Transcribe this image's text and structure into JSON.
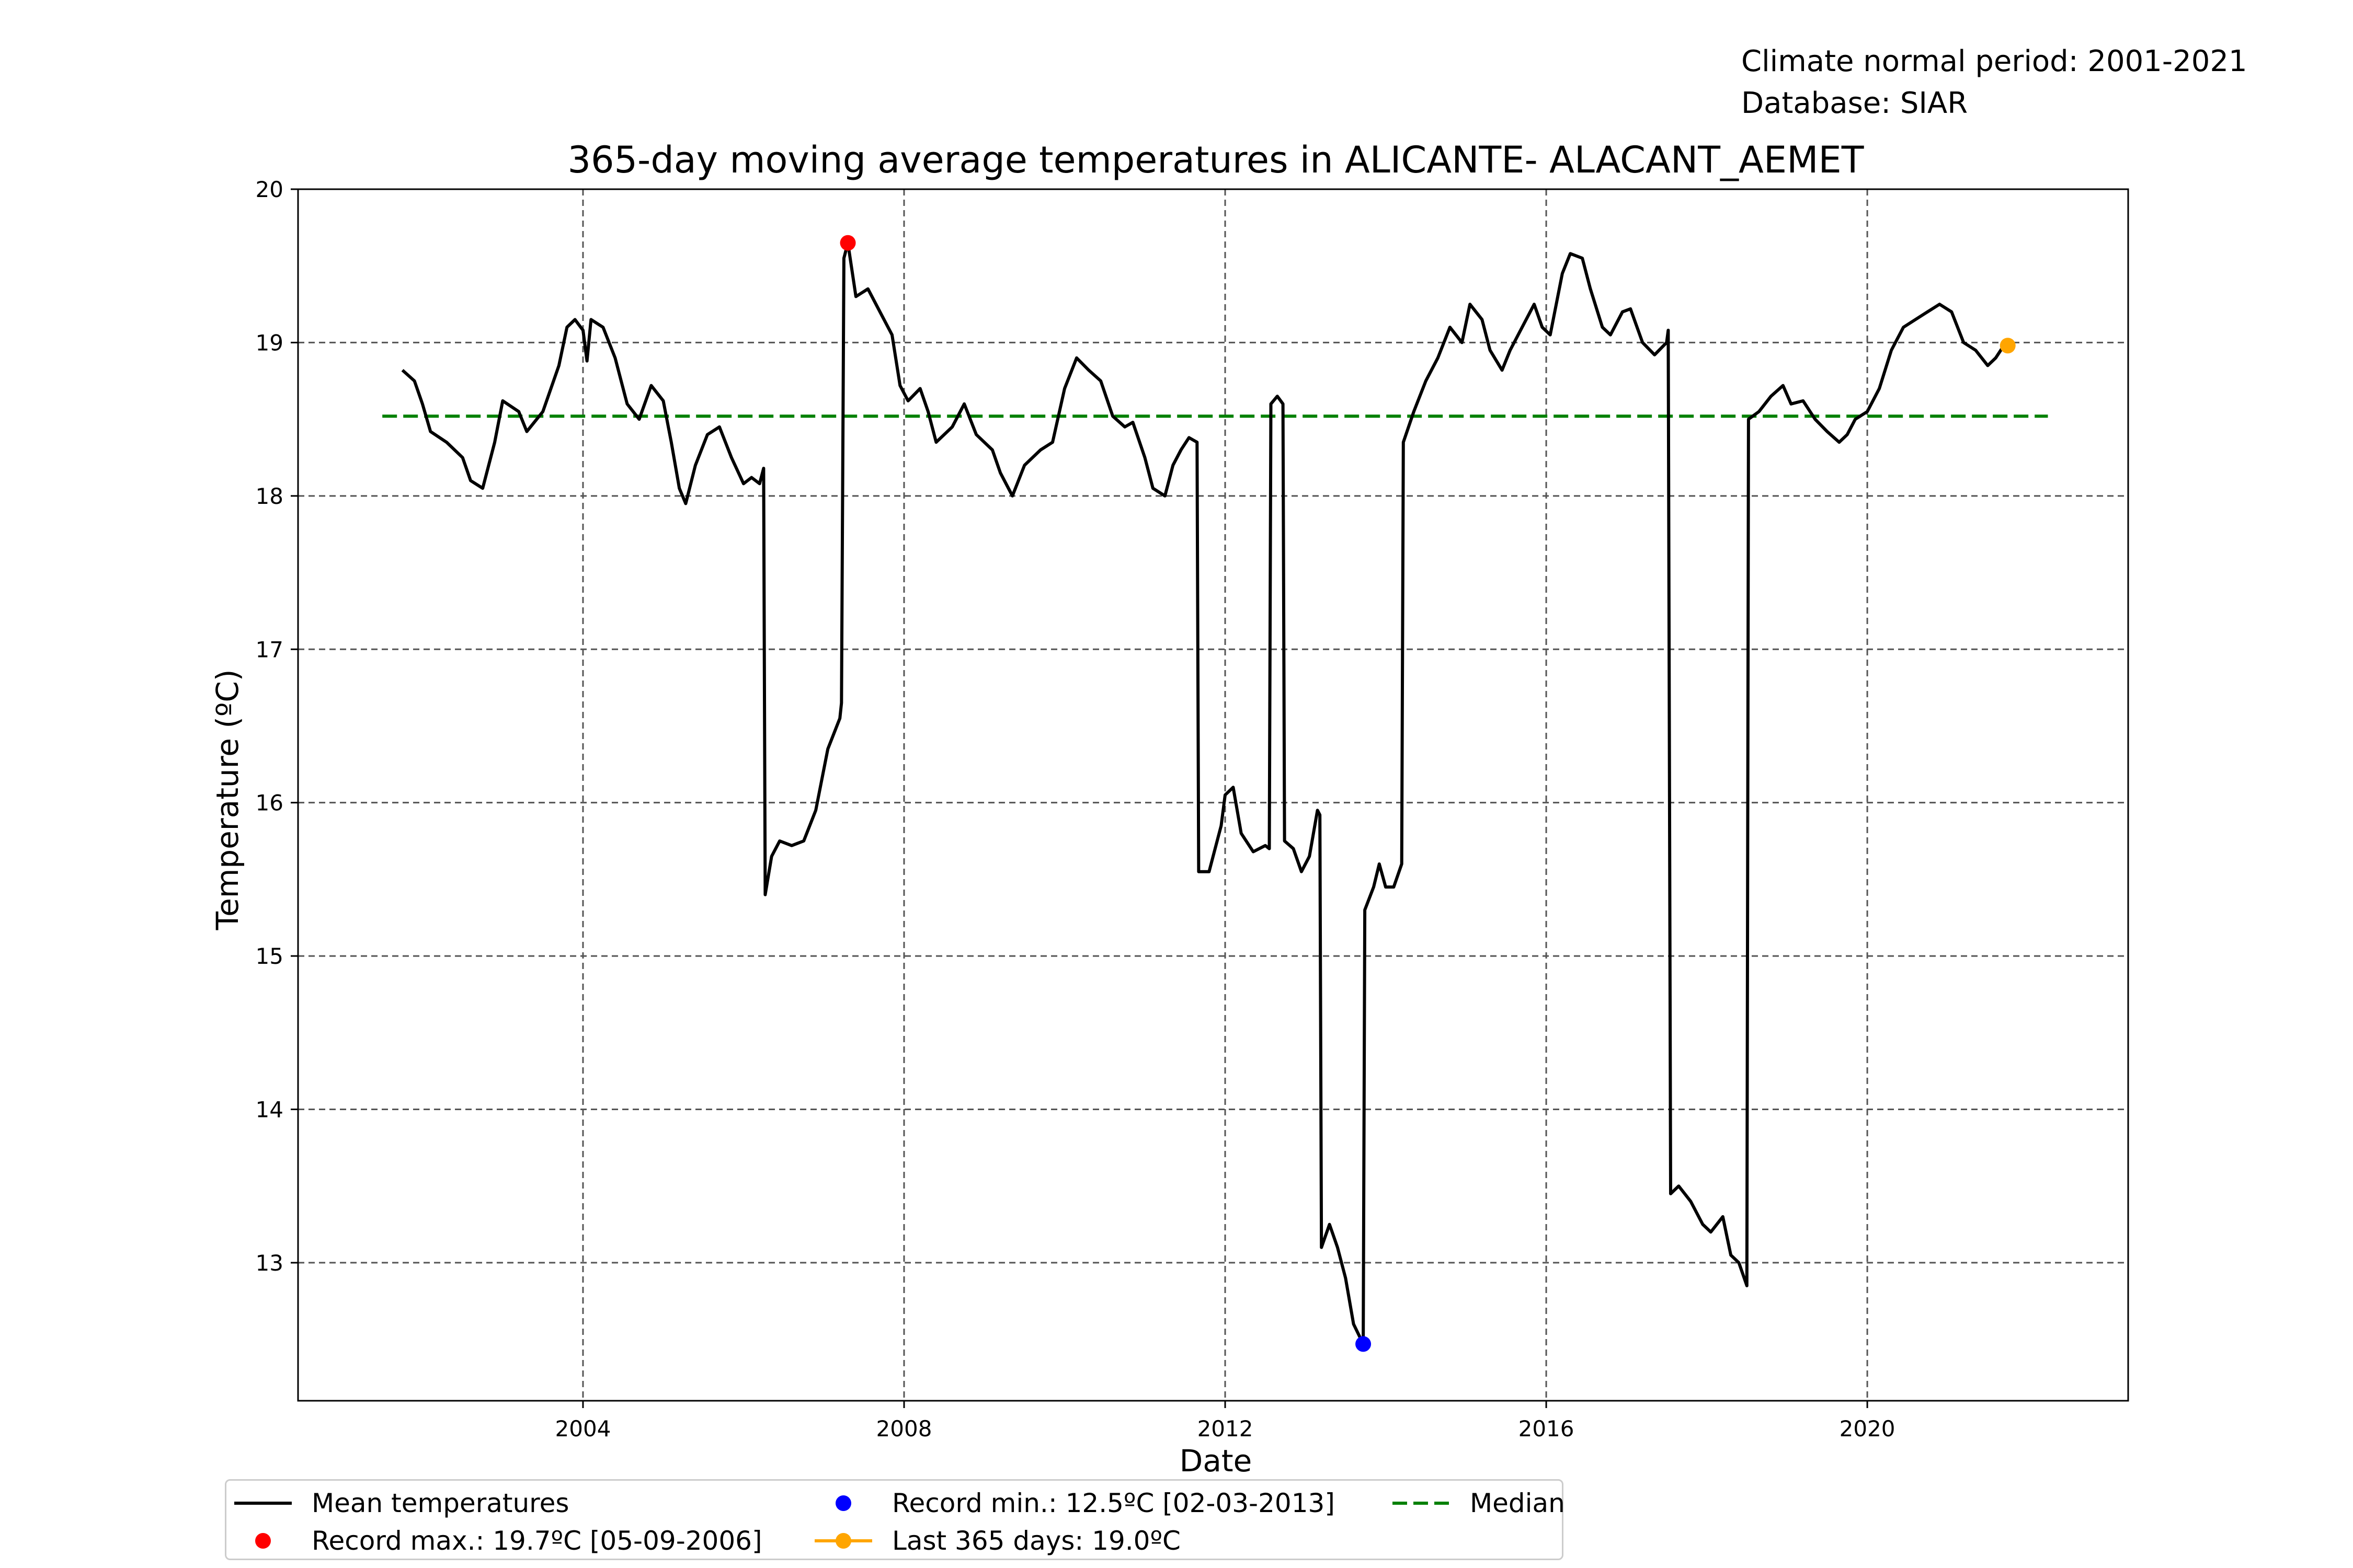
{
  "info": {
    "period": "Climate normal period: 2001-2021",
    "database": "Database: SIAR"
  },
  "legend": {
    "mean": "Mean temperatures",
    "record_max": "Record max.: 19.7ºC [05-09-2006]",
    "record_min": "Record min.: 12.5ºC [02-03-2013]",
    "last365": "Last 365 days: 19.0ºC",
    "median": "Median"
  },
  "colors": {
    "mean": "#000000",
    "record_max": "#ff0000",
    "record_min": "#0000ff",
    "last365": "#ffa500",
    "median": "#008000",
    "grid": "#555555"
  },
  "chart_data": {
    "type": "line",
    "title": "365-day moving average temperatures in ALICANTE- ALACANT_AEMET",
    "xlabel": "Date",
    "ylabel": "Temperature (ºC)",
    "xlim": [
      2000.45,
      2023.25
    ],
    "ylim": [
      12.1,
      20.0
    ],
    "xticks": [
      2004,
      2008,
      2012,
      2016,
      2020
    ],
    "yticks": [
      13,
      14,
      15,
      16,
      17,
      18,
      19,
      20
    ],
    "grid": true,
    "legend_position": "bottom",
    "median": {
      "value": 18.52,
      "x_range": [
        2001.5,
        2022.25
      ]
    },
    "series": [
      {
        "name": "Mean temperatures",
        "points": [
          [
            2001.75,
            18.82
          ],
          [
            2001.9,
            18.75
          ],
          [
            2002.0,
            18.6
          ],
          [
            2002.1,
            18.42
          ],
          [
            2002.3,
            18.35
          ],
          [
            2002.5,
            18.25
          ],
          [
            2002.6,
            18.1
          ],
          [
            2002.75,
            18.05
          ],
          [
            2002.9,
            18.35
          ],
          [
            2003.0,
            18.62
          ],
          [
            2003.2,
            18.55
          ],
          [
            2003.3,
            18.42
          ],
          [
            2003.5,
            18.55
          ],
          [
            2003.7,
            18.85
          ],
          [
            2003.8,
            19.1
          ],
          [
            2003.9,
            19.15
          ],
          [
            2004.0,
            19.08
          ],
          [
            2004.05,
            18.88
          ],
          [
            2004.1,
            19.15
          ],
          [
            2004.25,
            19.1
          ],
          [
            2004.4,
            18.9
          ],
          [
            2004.55,
            18.6
          ],
          [
            2004.7,
            18.5
          ],
          [
            2004.85,
            18.72
          ],
          [
            2005.0,
            18.62
          ],
          [
            2005.1,
            18.35
          ],
          [
            2005.2,
            18.05
          ],
          [
            2005.28,
            17.95
          ],
          [
            2005.4,
            18.2
          ],
          [
            2005.55,
            18.4
          ],
          [
            2005.7,
            18.45
          ],
          [
            2005.85,
            18.25
          ],
          [
            2006.0,
            18.08
          ],
          [
            2006.1,
            18.12
          ],
          [
            2006.2,
            18.08
          ],
          [
            2006.25,
            18.18
          ],
          [
            2006.27,
            15.4
          ],
          [
            2006.35,
            15.65
          ],
          [
            2006.45,
            15.75
          ],
          [
            2006.6,
            15.72
          ],
          [
            2006.75,
            15.75
          ],
          [
            2006.9,
            15.95
          ],
          [
            2007.05,
            16.35
          ],
          [
            2007.2,
            16.55
          ],
          [
            2007.22,
            16.65
          ],
          [
            2007.25,
            19.55
          ],
          [
            2007.3,
            19.65
          ],
          [
            2007.4,
            19.3
          ],
          [
            2007.55,
            19.35
          ],
          [
            2007.7,
            19.2
          ],
          [
            2007.85,
            19.05
          ],
          [
            2007.95,
            18.72
          ],
          [
            2008.05,
            18.62
          ],
          [
            2008.2,
            18.7
          ],
          [
            2008.3,
            18.55
          ],
          [
            2008.4,
            18.35
          ],
          [
            2008.6,
            18.45
          ],
          [
            2008.75,
            18.6
          ],
          [
            2008.9,
            18.4
          ],
          [
            2009.1,
            18.3
          ],
          [
            2009.2,
            18.15
          ],
          [
            2009.35,
            18.0
          ],
          [
            2009.5,
            18.2
          ],
          [
            2009.7,
            18.3
          ],
          [
            2009.85,
            18.35
          ],
          [
            2010.0,
            18.7
          ],
          [
            2010.15,
            18.9
          ],
          [
            2010.3,
            18.82
          ],
          [
            2010.45,
            18.75
          ],
          [
            2010.6,
            18.52
          ],
          [
            2010.75,
            18.45
          ],
          [
            2010.85,
            18.48
          ],
          [
            2011.0,
            18.25
          ],
          [
            2011.1,
            18.05
          ],
          [
            2011.25,
            18.0
          ],
          [
            2011.35,
            18.2
          ],
          [
            2011.45,
            18.3
          ],
          [
            2011.55,
            18.38
          ],
          [
            2011.65,
            18.35
          ],
          [
            2011.67,
            15.55
          ],
          [
            2011.8,
            15.55
          ],
          [
            2011.95,
            15.85
          ],
          [
            2012.0,
            16.05
          ],
          [
            2012.1,
            16.1
          ],
          [
            2012.2,
            15.8
          ],
          [
            2012.35,
            15.68
          ],
          [
            2012.5,
            15.72
          ],
          [
            2012.55,
            15.7
          ],
          [
            2012.57,
            18.6
          ],
          [
            2012.65,
            18.65
          ],
          [
            2012.72,
            18.6
          ],
          [
            2012.74,
            15.75
          ],
          [
            2012.85,
            15.7
          ],
          [
            2012.95,
            15.55
          ],
          [
            2013.05,
            15.65
          ],
          [
            2013.15,
            15.95
          ],
          [
            2013.18,
            15.92
          ],
          [
            2013.2,
            13.1
          ],
          [
            2013.3,
            13.25
          ],
          [
            2013.4,
            13.1
          ],
          [
            2013.5,
            12.9
          ],
          [
            2013.6,
            12.6
          ],
          [
            2013.72,
            12.47
          ],
          [
            2013.74,
            15.3
          ],
          [
            2013.85,
            15.45
          ],
          [
            2013.92,
            15.6
          ],
          [
            2014.0,
            15.45
          ],
          [
            2014.1,
            15.45
          ],
          [
            2014.2,
            15.6
          ],
          [
            2014.22,
            18.35
          ],
          [
            2014.35,
            18.55
          ],
          [
            2014.5,
            18.75
          ],
          [
            2014.65,
            18.9
          ],
          [
            2014.8,
            19.1
          ],
          [
            2014.95,
            19.0
          ],
          [
            2015.05,
            19.25
          ],
          [
            2015.2,
            19.15
          ],
          [
            2015.3,
            18.95
          ],
          [
            2015.45,
            18.82
          ],
          [
            2015.55,
            18.95
          ],
          [
            2015.7,
            19.1
          ],
          [
            2015.85,
            19.25
          ],
          [
            2015.95,
            19.1
          ],
          [
            2016.05,
            19.05
          ],
          [
            2016.2,
            19.45
          ],
          [
            2016.3,
            19.58
          ],
          [
            2016.45,
            19.55
          ],
          [
            2016.55,
            19.35
          ],
          [
            2016.7,
            19.1
          ],
          [
            2016.8,
            19.05
          ],
          [
            2016.95,
            19.2
          ],
          [
            2017.05,
            19.22
          ],
          [
            2017.2,
            19.0
          ],
          [
            2017.35,
            18.92
          ],
          [
            2017.5,
            19.0
          ],
          [
            2017.52,
            19.08
          ],
          [
            2017.55,
            13.45
          ],
          [
            2017.65,
            13.5
          ],
          [
            2017.8,
            13.4
          ],
          [
            2017.95,
            13.25
          ],
          [
            2018.05,
            13.2
          ],
          [
            2018.2,
            13.3
          ],
          [
            2018.3,
            13.05
          ],
          [
            2018.4,
            13.0
          ],
          [
            2018.5,
            12.85
          ],
          [
            2018.52,
            18.5
          ],
          [
            2018.65,
            18.55
          ],
          [
            2018.8,
            18.65
          ],
          [
            2018.95,
            18.72
          ],
          [
            2019.05,
            18.6
          ],
          [
            2019.2,
            18.62
          ],
          [
            2019.35,
            18.5
          ],
          [
            2019.5,
            18.42
          ],
          [
            2019.65,
            18.35
          ],
          [
            2019.75,
            18.4
          ],
          [
            2019.85,
            18.5
          ],
          [
            2020.0,
            18.55
          ],
          [
            2020.15,
            18.7
          ],
          [
            2020.3,
            18.95
          ],
          [
            2020.45,
            19.1
          ],
          [
            2020.6,
            19.15
          ],
          [
            2020.75,
            19.2
          ],
          [
            2020.9,
            19.25
          ],
          [
            2021.05,
            19.2
          ],
          [
            2021.2,
            19.0
          ],
          [
            2021.35,
            18.95
          ],
          [
            2021.5,
            18.85
          ],
          [
            2021.6,
            18.9
          ],
          [
            2021.7,
            18.98
          ]
        ]
      }
    ],
    "markers": [
      {
        "name": "Record max.: 19.7ºC [05-09-2006]",
        "x": 2007.3,
        "y": 19.65,
        "color": "#ff0000"
      },
      {
        "name": "Record min.: 12.5ºC [02-03-2013]",
        "x": 2013.72,
        "y": 12.47,
        "color": "#0000ff"
      },
      {
        "name": "Last 365 days: 19.0ºC",
        "x": 2021.75,
        "y": 18.98,
        "color": "#ffa500"
      }
    ]
  }
}
